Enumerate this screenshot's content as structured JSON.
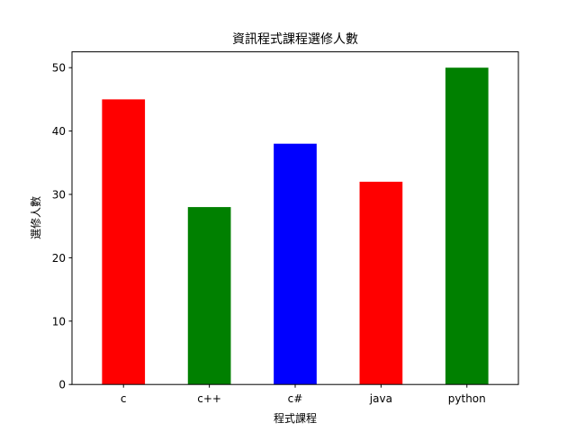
{
  "chart_data": {
    "type": "bar",
    "title": "資訊程式課程選修人數",
    "xlabel": "程式課程",
    "ylabel": "選修人數",
    "categories": [
      "c",
      "c++",
      "c#",
      "java",
      "python"
    ],
    "values": [
      45,
      28,
      38,
      32,
      50
    ],
    "colors": [
      "#ff0000",
      "#008000",
      "#0000ff",
      "#ff0000",
      "#008000"
    ],
    "ylim": [
      0,
      52.5
    ],
    "yticks": [
      0,
      10,
      20,
      30,
      40,
      50
    ],
    "grid": false,
    "legend": "none"
  }
}
